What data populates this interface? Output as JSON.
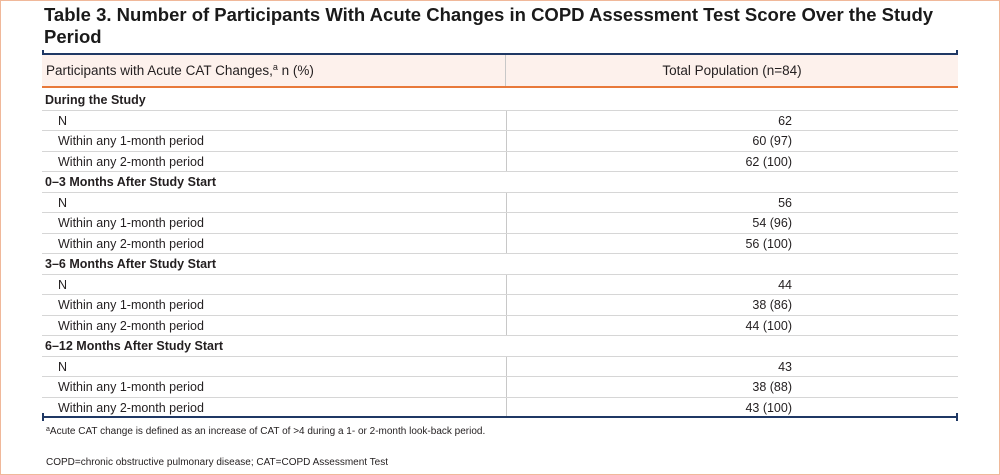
{
  "title": "Table 3. Number of Participants With Acute Changes in COPD Assessment Test Score Over the Study Period",
  "header": {
    "col1_prefix": "Participants with Acute CAT Changes,",
    "col1_sup": "a",
    "col1_suffix": " n (%)",
    "col2": "Total Population (n=84)"
  },
  "sections": [
    {
      "label": "During the Study",
      "rows": [
        {
          "label": "N",
          "value": "62"
        },
        {
          "label": "Within any 1-month period",
          "value": "60 (97)"
        },
        {
          "label": "Within any 2-month period",
          "value": "62 (100)"
        }
      ]
    },
    {
      "label": "0–3 Months After Study Start",
      "rows": [
        {
          "label": "N",
          "value": "56"
        },
        {
          "label": "Within any 1-month period",
          "value": "54 (96)"
        },
        {
          "label": "Within any 2-month period",
          "value": "56 (100)"
        }
      ]
    },
    {
      "label": "3–6 Months After Study Start",
      "rows": [
        {
          "label": "N",
          "value": "44"
        },
        {
          "label": "Within any 1-month period",
          "value": "38 (86)"
        },
        {
          "label": "Within any 2-month period",
          "value": "44 (100)"
        }
      ]
    },
    {
      "label": "6–12 Months After Study Start",
      "rows": [
        {
          "label": "N",
          "value": "43"
        },
        {
          "label": "Within any 1-month period",
          "value": "38 (88)"
        },
        {
          "label": "Within any 2-month period",
          "value": "43 (100)"
        }
      ]
    }
  ],
  "footnotes": {
    "a_marker": "a",
    "a_text": "Acute CAT change is defined as an increase of CAT of >4 during a 1- or 2-month look-back period.",
    "abbreviations": "COPD=chronic obstructive pulmonary disease; CAT=COPD Assessment Test"
  },
  "colors": {
    "accent_orange": "#e8793a",
    "header_bg": "#fdf1ec",
    "rule_navy": "#1f3864"
  }
}
